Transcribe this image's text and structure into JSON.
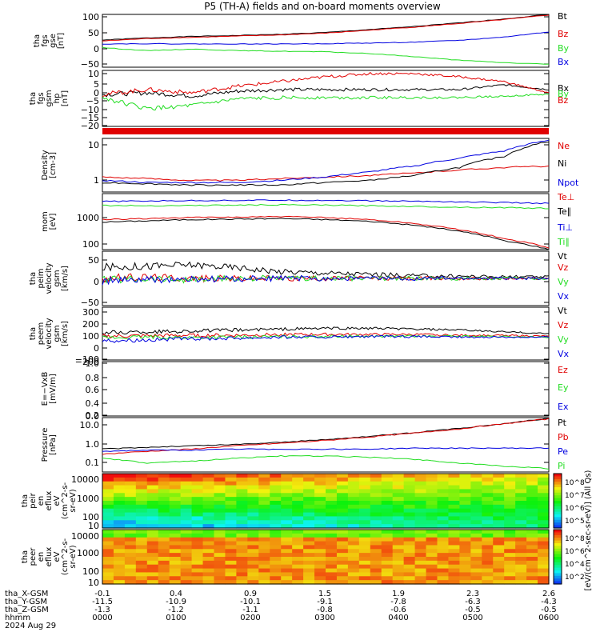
{
  "title": "P5 (TH-A) fields and on-board moments overview",
  "colors": {
    "black": "#000000",
    "red": "#e00000",
    "green": "#22dd22",
    "blue": "#0000e0"
  },
  "chart_data": [
    {
      "type": "line",
      "ylabel": [
        "tha",
        "fgs",
        "gse",
        "[nT]"
      ],
      "ylim": [
        -75,
        100
      ],
      "ticks": [
        "100",
        "50",
        "0",
        "−50"
      ],
      "series": [
        {
          "name": "Bt",
          "color": "black",
          "y": [
            15,
            22,
            27,
            30,
            34,
            40,
            50,
            60,
            72,
            85,
            100
          ]
        },
        {
          "name": "Bz",
          "color": "red",
          "y": [
            12,
            20,
            24,
            28,
            32,
            38,
            48,
            58,
            70,
            83,
            98
          ]
        },
        {
          "name": "By",
          "color": "green",
          "y": [
            -10,
            -20,
            -15,
            -20,
            -22,
            -24,
            -30,
            -40,
            -52,
            -60,
            -65
          ]
        },
        {
          "name": "Bx",
          "color": "blue",
          "y": [
            2,
            3,
            2,
            2,
            2,
            3,
            5,
            8,
            14,
            25,
            42
          ]
        }
      ]
    },
    {
      "type": "line",
      "ylabel": [
        "tha",
        "fgs",
        "gsm",
        "hp",
        "[nT]"
      ],
      "ylim": [
        -23,
        12
      ],
      "ticks": [
        "10",
        "5",
        "0",
        "−5",
        "−10",
        "−15",
        "−20"
      ],
      "series": [
        {
          "name": "Bx",
          "color": "black",
          "y": [
            -3,
            -2,
            -4,
            -1,
            0,
            0,
            0,
            0,
            0,
            3,
            0
          ]
        },
        {
          "name": "By",
          "color": "green",
          "y": [
            -5,
            -12,
            -10,
            -6,
            -5,
            -5,
            -5,
            -5,
            -5,
            -4,
            -3
          ]
        },
        {
          "name": "Bz",
          "color": "red",
          "y": [
            -3,
            0,
            -2,
            2,
            5,
            8,
            10,
            10,
            8,
            5,
            -2
          ]
        }
      ]
    },
    {
      "type": "line",
      "ylabel": [
        "Density",
        "[cm-3]"
      ],
      "ylim": [
        0.3,
        15
      ],
      "log": true,
      "ticks": [
        "10",
        "1"
      ],
      "series": [
        {
          "name": "Ne",
          "color": "red",
          "y": [
            0.9,
            0.8,
            0.7,
            0.7,
            0.8,
            0.9,
            1.0,
            1.2,
            1.5,
            1.8,
            2.0
          ]
        },
        {
          "name": "Ni",
          "color": "black",
          "y": [
            0.6,
            0.55,
            0.5,
            0.5,
            0.5,
            0.6,
            0.7,
            1.0,
            1.8,
            4.0,
            12.0
          ]
        },
        {
          "name": "Npot",
          "color": "blue",
          "y": [
            0.7,
            0.6,
            0.6,
            0.6,
            0.7,
            0.9,
            1.3,
            2.0,
            3.5,
            6.0,
            13.0
          ]
        }
      ]
    },
    {
      "type": "line",
      "ylabel": [
        "mom",
        "[eV]"
      ],
      "ylim": [
        70,
        10000
      ],
      "log": true,
      "ticks": [
        "1000",
        "100"
      ],
      "series": [
        {
          "name": "Te⊥",
          "color": "red",
          "y": [
            1000,
            1100,
            1200,
            1250,
            1300,
            1200,
            1000,
            700,
            400,
            180,
            80
          ]
        },
        {
          "name": "Te∥",
          "color": "black",
          "y": [
            800,
            900,
            1000,
            1050,
            1100,
            1000,
            850,
            600,
            350,
            150,
            70
          ]
        },
        {
          "name": "Ti⊥",
          "color": "blue",
          "y": [
            5000,
            5200,
            5400,
            5500,
            5600,
            5500,
            5300,
            5100,
            4800,
            4500,
            4200
          ]
        },
        {
          "name": "Ti∥",
          "color": "green",
          "y": [
            3500,
            3400,
            3500,
            3600,
            3700,
            3600,
            3400,
            3200,
            3000,
            2900,
            2700
          ]
        }
      ]
    },
    {
      "type": "line",
      "ylabel": [
        "tha",
        "peim",
        "velocity",
        "gsm",
        "[km/s]"
      ],
      "ylim": [
        -100,
        100
      ],
      "ticks": [
        "50",
        "0",
        "−50"
      ],
      "series": [
        {
          "name": "Vt",
          "color": "black",
          "y": [
            40,
            45,
            50,
            40,
            25,
            20,
            15,
            10,
            8,
            6,
            5
          ]
        },
        {
          "name": "Vz",
          "color": "red",
          "y": [
            0,
            5,
            0,
            0,
            0,
            0,
            0,
            0,
            0,
            0,
            0
          ]
        },
        {
          "name": "Vy",
          "color": "green",
          "y": [
            -5,
            0,
            -5,
            0,
            0,
            0,
            0,
            0,
            0,
            0,
            0
          ]
        },
        {
          "name": "Vx",
          "color": "blue",
          "y": [
            -10,
            -5,
            -5,
            -2,
            0,
            0,
            0,
            0,
            0,
            0,
            0
          ]
        }
      ]
    },
    {
      "type": "line",
      "ylabel": [
        "tha",
        "peem",
        "velocity",
        "gsm",
        "[km/s]"
      ],
      "ylim": [
        -250,
        350
      ],
      "ticks": [
        "300",
        "200",
        "100",
        "0",
        "−100",
        "−200"
      ],
      "series": [
        {
          "name": "Vt",
          "color": "black",
          "y": [
            60,
            70,
            80,
            90,
            100,
            110,
            110,
            100,
            90,
            70,
            50
          ]
        },
        {
          "name": "Vz",
          "color": "red",
          "y": [
            20,
            25,
            30,
            30,
            40,
            40,
            40,
            40,
            30,
            30,
            20
          ]
        },
        {
          "name": "Vy",
          "color": "green",
          "y": [
            0,
            10,
            5,
            10,
            15,
            20,
            20,
            20,
            20,
            15,
            10
          ]
        },
        {
          "name": "Vx",
          "color": "blue",
          "y": [
            -30,
            -20,
            -10,
            0,
            10,
            10,
            15,
            15,
            10,
            10,
            10
          ]
        }
      ]
    },
    {
      "type": "line",
      "ylabel": [
        "E=−VxB",
        "[mV/m]"
      ],
      "ylim": [
        0,
        1
      ],
      "ticks": [
        "1.0",
        "0.8",
        "0.6",
        "0.4",
        "0.2",
        "0.0"
      ],
      "series": [
        {
          "name": "Ez",
          "color": "red",
          "y": []
        },
        {
          "name": "Ey",
          "color": "green",
          "y": []
        },
        {
          "name": "Ex",
          "color": "blue",
          "y": []
        }
      ]
    },
    {
      "type": "line",
      "ylabel": [
        "Pressure",
        "[nPa]"
      ],
      "ylim": [
        0.05,
        12
      ],
      "log": true,
      "ticks": [
        "10.0",
        "1.0",
        "0.1"
      ],
      "series": [
        {
          "name": "Pt",
          "color": "black",
          "y": [
            0.5,
            0.6,
            0.7,
            0.8,
            1.0,
            1.3,
            1.8,
            2.6,
            4.0,
            6.5,
            11.0
          ]
        },
        {
          "name": "Pb",
          "color": "red",
          "y": [
            0.3,
            0.4,
            0.5,
            0.7,
            0.9,
            1.2,
            1.7,
            2.5,
            3.8,
            6.3,
            10.5
          ]
        },
        {
          "name": "Pe",
          "color": "blue",
          "y": [
            0.4,
            0.45,
            0.45,
            0.5,
            0.5,
            0.5,
            0.5,
            0.55,
            0.55,
            0.55,
            0.55
          ]
        },
        {
          "name": "Pi",
          "color": "green",
          "y": [
            0.2,
            0.12,
            0.15,
            0.2,
            0.25,
            0.25,
            0.22,
            0.18,
            0.12,
            0.09,
            0.07
          ]
        }
      ]
    },
    {
      "type": "heatmap",
      "ylabel": [
        "tha",
        "peir",
        "en",
        "eflux",
        "eV",
        "(cm^2-s-",
        "sr-eV)"
      ],
      "ticks": [
        "10000",
        "1000",
        "100",
        "10"
      ],
      "colorbar_ticks": [
        "10^8",
        "10^7",
        "10^6",
        "10^5"
      ],
      "colorbar_label": "[eV/(cm^2-sec-sr-eV)] (All Qs)"
    },
    {
      "type": "heatmap",
      "ylabel": [
        "tha",
        "peer",
        "en",
        "eflux",
        "eV",
        "(cm^2-s-",
        "sr-eV)"
      ],
      "ticks": [
        "10000",
        "1000",
        "100",
        "10"
      ],
      "colorbar_ticks": [
        "10^8",
        "10^6",
        "10^4",
        "10^2"
      ],
      "colorbar_label": "[eV/(cm^2-sec-sr-eV)] (All Qs)"
    }
  ],
  "xaxis": {
    "row_labels": [
      "tha_X-GSM",
      "tha_Y-GSM",
      "tha_Z-GSM",
      "hhmm",
      "2024 Aug 29"
    ],
    "columns": [
      [
        "-0.1",
        "-11.5",
        "-1.3",
        "0000"
      ],
      [
        "0.4",
        "-10.9",
        "-1.2",
        "0100"
      ],
      [
        "0.9",
        "-10.1",
        "-1.1",
        "0200"
      ],
      [
        "1.5",
        "-9.1",
        "-0.8",
        "0300"
      ],
      [
        "1.9",
        "-7.8",
        "-0.6",
        "0400"
      ],
      [
        "2.3",
        "-6.3",
        "-0.5",
        "0500"
      ],
      [
        "2.6",
        "-4.3",
        "-0.5",
        "0600"
      ]
    ]
  }
}
